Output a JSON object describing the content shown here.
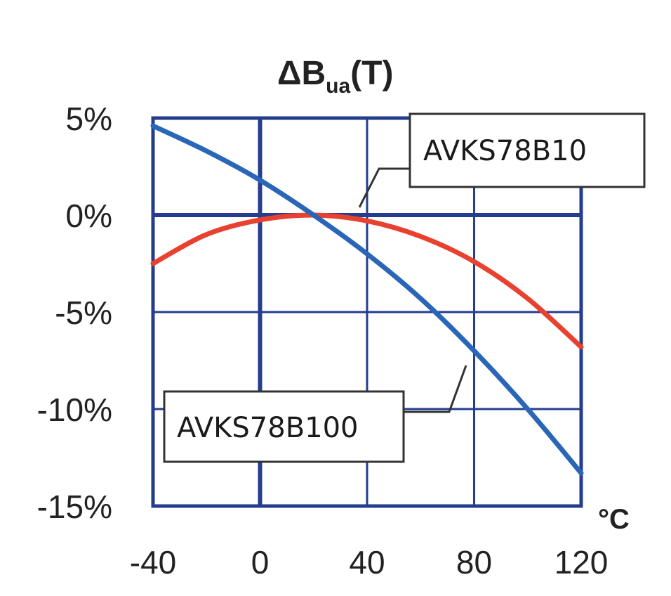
{
  "chart_data": {
    "type": "line",
    "title": {
      "symbol": "ΔB",
      "subscript": "ua",
      "suffix": "(T)"
    },
    "x_unit": "°C",
    "xlim": [
      -40,
      120
    ],
    "ylim": [
      -15,
      5
    ],
    "x_ticks": [
      -40,
      0,
      40,
      80,
      120
    ],
    "x_tick_labels": [
      "-40",
      "0",
      "40",
      "80",
      "120"
    ],
    "y_ticks": [
      5,
      0,
      -5,
      -10,
      -15
    ],
    "y_tick_labels": [
      "5%",
      "0%",
      "-5%",
      "-10%",
      "-15%"
    ],
    "grid": true,
    "series": [
      {
        "name": "AVKS78B10",
        "color": "#e8412f",
        "x": [
          -40,
          -20,
          0,
          20,
          40,
          60,
          80,
          100,
          120
        ],
        "y": [
          -2.5,
          -1.0,
          -0.25,
          0.0,
          -0.3,
          -1.1,
          -2.4,
          -4.3,
          -6.8
        ]
      },
      {
        "name": "AVKS78B100",
        "color": "#2a66b8",
        "x": [
          -40,
          -20,
          0,
          20,
          40,
          60,
          80,
          100,
          120
        ],
        "y": [
          4.6,
          3.3,
          1.8,
          0.0,
          -2.0,
          -4.3,
          -7.0,
          -10.0,
          -13.3
        ]
      }
    ],
    "callouts": [
      {
        "label": "AVKS78B10",
        "series": 0
      },
      {
        "label": "AVKS78B100",
        "series": 1
      }
    ]
  }
}
